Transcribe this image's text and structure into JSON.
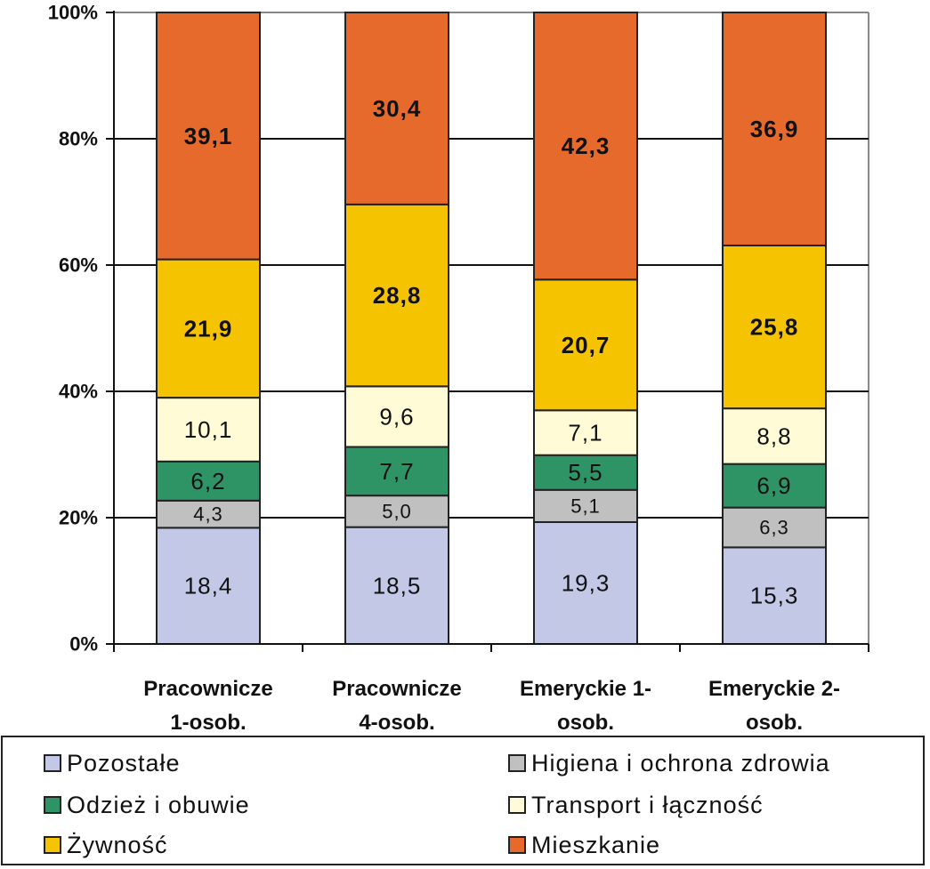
{
  "chart_data": {
    "type": "bar",
    "stacked": true,
    "percent_axis": true,
    "categories": [
      "Pracownicze\n1-osob.",
      "Pracownicze\n4-osob.",
      "Emeryckie 1-\nosob.",
      "Emeryckie 2-\nosob."
    ],
    "series": [
      {
        "name": "Pozostałe",
        "color": "#c3c8e6",
        "values": [
          18.4,
          18.5,
          19.3,
          15.3
        ],
        "label_style": "normal"
      },
      {
        "name": "Higiena i ochrona zdrowia",
        "color": "#c0c0c0",
        "values": [
          4.3,
          5.0,
          5.1,
          6.3
        ],
        "label_style": "small"
      },
      {
        "name": "Odzież i obuwie",
        "color": "#2e9466",
        "values": [
          6.2,
          7.7,
          5.5,
          6.9
        ],
        "label_style": "normal"
      },
      {
        "name": "Transport i łączność",
        "color": "#fefbd6",
        "values": [
          10.1,
          9.6,
          7.1,
          8.8
        ],
        "label_style": "normal"
      },
      {
        "name": "Żywność",
        "color": "#f5c300",
        "values": [
          21.9,
          28.8,
          20.7,
          25.8
        ],
        "label_style": "bold"
      },
      {
        "name": "Mieszkanie",
        "color": "#e66a2c",
        "values": [
          39.1,
          30.4,
          42.3,
          36.9
        ],
        "label_style": "bold"
      }
    ],
    "value_labels": [
      [
        "18,4",
        "18,5",
        "19,3",
        "15,3"
      ],
      [
        "4,3",
        "5,0",
        "5,1",
        "6,3"
      ],
      [
        "6,2",
        "7,7",
        "5,5",
        "6,9"
      ],
      [
        "10,1",
        "9,6",
        "7,1",
        "8,8"
      ],
      [
        "21,9",
        "28,8",
        "20,7",
        "25,8"
      ],
      [
        "39,1",
        "30,4",
        "42,3",
        "36,9"
      ]
    ],
    "yticks": [
      "0%",
      "20%",
      "40%",
      "60%",
      "80%",
      "100%"
    ],
    "ylim": [
      0,
      100
    ],
    "grid": true,
    "legend_position": "bottom",
    "legend_order": [
      0,
      1,
      2,
      3,
      4,
      5
    ],
    "title": "",
    "xlabel": "",
    "ylabel": ""
  }
}
